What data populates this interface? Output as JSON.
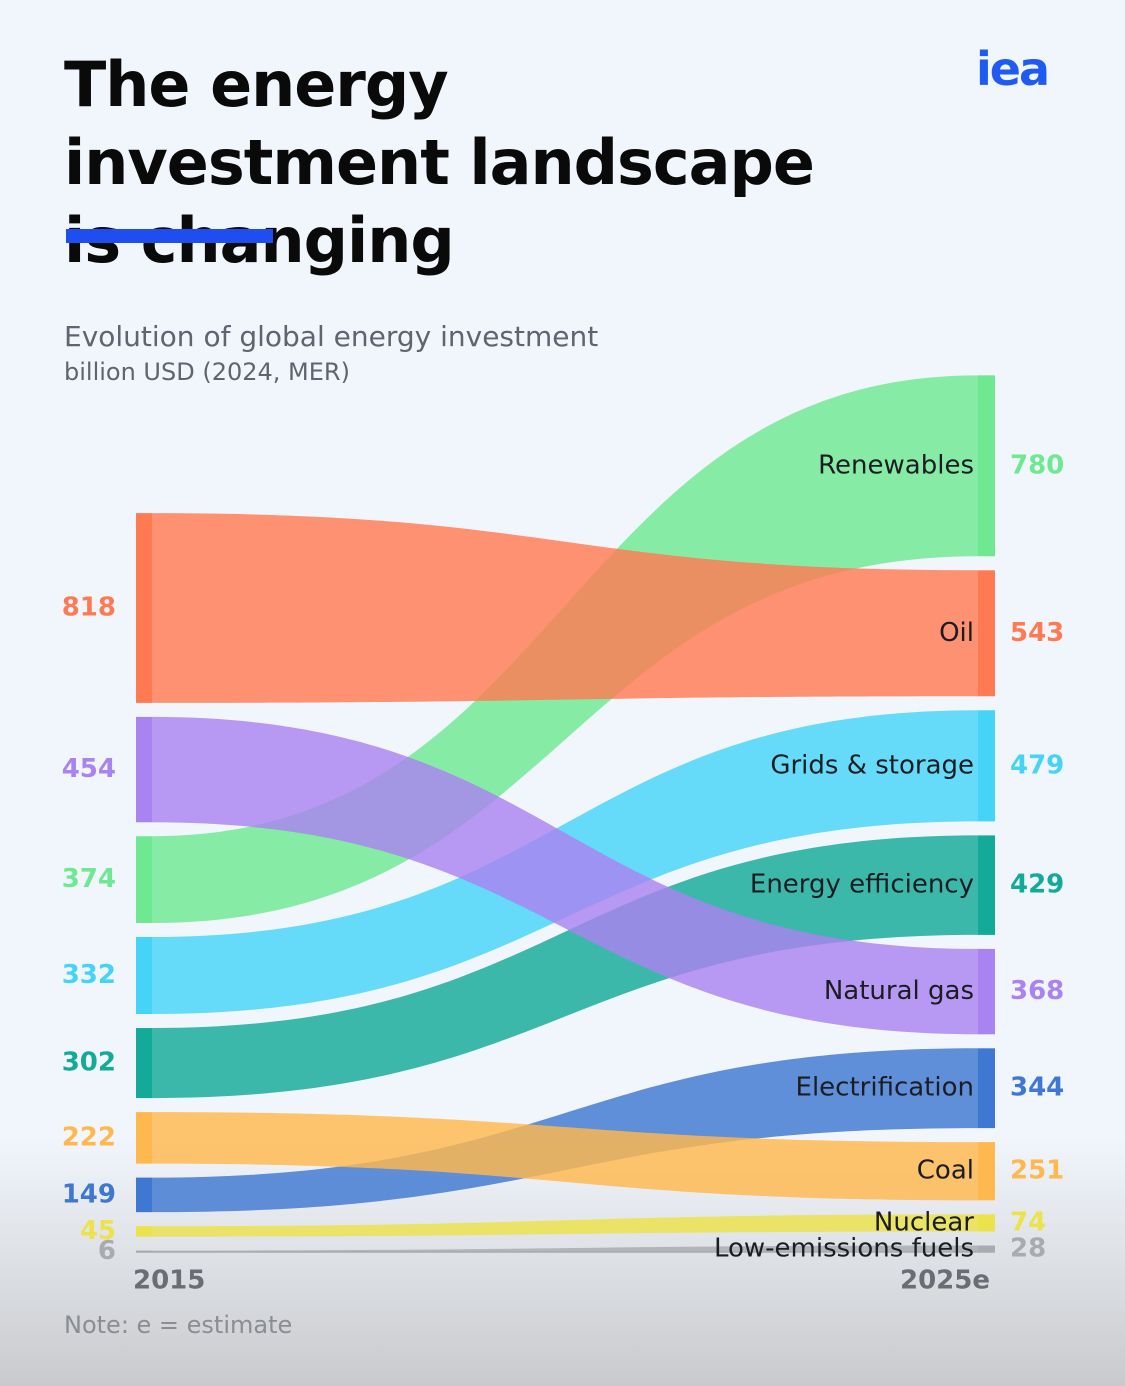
{
  "logo": "iea",
  "chart_data": {
    "type": "slope",
    "title": "The energy investment landscape is changing",
    "subtitle": "Evolution of global energy investment",
    "y_label": "billion USD (2024, MER)",
    "note": "Note: e = estimate",
    "x": [
      "2015",
      "2025e"
    ],
    "series": [
      {
        "name": "Renewables",
        "color": "#6ee891",
        "values": [
          374,
          780
        ]
      },
      {
        "name": "Oil",
        "color": "#ff7a52",
        "values": [
          818,
          543
        ]
      },
      {
        "name": "Grids & storage",
        "color": "#45d3f8",
        "values": [
          332,
          479
        ]
      },
      {
        "name": "Energy efficiency",
        "color": "#14aa99",
        "values": [
          302,
          429
        ]
      },
      {
        "name": "Natural gas",
        "color": "#a983f0",
        "values": [
          454,
          368
        ]
      },
      {
        "name": "Electrification",
        "color": "#3f78d2",
        "values": [
          149,
          344
        ]
      },
      {
        "name": "Coal",
        "color": "#ffb84d",
        "values": [
          222,
          251
        ]
      },
      {
        "name": "Nuclear",
        "color": "#ece24a",
        "values": [
          45,
          74
        ]
      },
      {
        "name": "Low-emissions fuels",
        "color": "#a9abb0",
        "values": [
          6,
          28
        ]
      }
    ]
  }
}
